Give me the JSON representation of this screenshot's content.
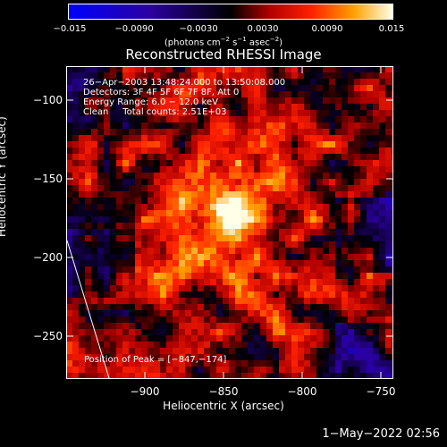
{
  "colorbar": {
    "ticks": [
      "−0.015",
      "−0.0090",
      "−0.0030",
      "0.0030",
      "0.0090",
      "0.015"
    ],
    "units_prefix": "(photons cm",
    "units_exp1": "−2",
    "units_mid1": " s",
    "units_exp2": "−1",
    "units_mid2": " asec",
    "units_exp3": "−2",
    "units_suffix": ")"
  },
  "title": "Reconstructed RHESSI Image",
  "info": {
    "line1": "26−Apr−2003 13:48:24.000 to 13:50:08.000",
    "line2": "Detectors: 3F 4F 5F 6F 7F 8F, Att 0",
    "line3": "Energy Range: 6.0 − 12.0 keV",
    "line4": "Clean     Total counts: 2.51E+03"
  },
  "peak_label": "Position of Peak = [−847,−174]",
  "chart_data": {
    "type": "heatmap",
    "title": "Reconstructed RHESSI Image",
    "xlabel": "Heliocentric X (arcsec)",
    "ylabel": "Heliocentric Y (arcsec)",
    "x_ticks": [
      "−900",
      "−850",
      "−800",
      "−750"
    ],
    "y_ticks": [
      "−100",
      "−150",
      "−200",
      "−250"
    ],
    "colorbar_range": [
      -0.015,
      0.015
    ],
    "peak": [
      -847,
      -174
    ]
  },
  "timestamp": "1−May−2022 02:56"
}
